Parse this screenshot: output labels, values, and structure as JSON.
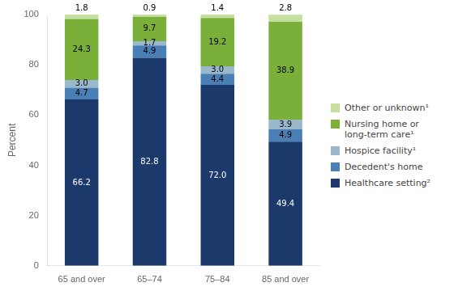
{
  "chart_data": {
    "type": "bar",
    "stacked": true,
    "categories": [
      "65 and over",
      "65–74",
      "75–84",
      "85 and over"
    ],
    "series": [
      {
        "name": "Healthcare setting²",
        "color": "#1b3a6b",
        "values": [
          66.2,
          82.8,
          72.0,
          49.4
        ],
        "value_labels": [
          "66.2",
          "82.8",
          "72.0",
          "49.4"
        ]
      },
      {
        "name": "Decedent's home",
        "color": "#4a7fb5",
        "values": [
          4.7,
          4.9,
          4.4,
          4.9
        ],
        "value_labels": [
          "4.7",
          "4.9",
          "4.4",
          "4.9"
        ]
      },
      {
        "name": "Hospice facility¹",
        "color": "#9ab8cc",
        "values": [
          3.0,
          1.7,
          3.0,
          3.9
        ],
        "value_labels": [
          "3.0",
          "1.7",
          "3.0",
          "3.9"
        ]
      },
      {
        "name": "Nursing home or\nlong-term care¹",
        "color": "#7aaf3a",
        "values": [
          24.3,
          9.7,
          19.2,
          38.9
        ],
        "value_labels": [
          "24.3",
          "9.7",
          "19.2",
          "38.9"
        ]
      },
      {
        "name": "Other or unknown¹",
        "color": "#c5dfa0",
        "values": [
          1.8,
          0.9,
          1.4,
          2.8
        ],
        "value_labels": [
          "1.8",
          "0.9",
          "1.4",
          "2.8"
        ]
      }
    ],
    "ylabel": "Percent",
    "ylim": [
      0,
      100
    ],
    "yticks": [
      0,
      20,
      40,
      60,
      80,
      100
    ],
    "grid": false,
    "legend": "right",
    "data_labels": true
  }
}
